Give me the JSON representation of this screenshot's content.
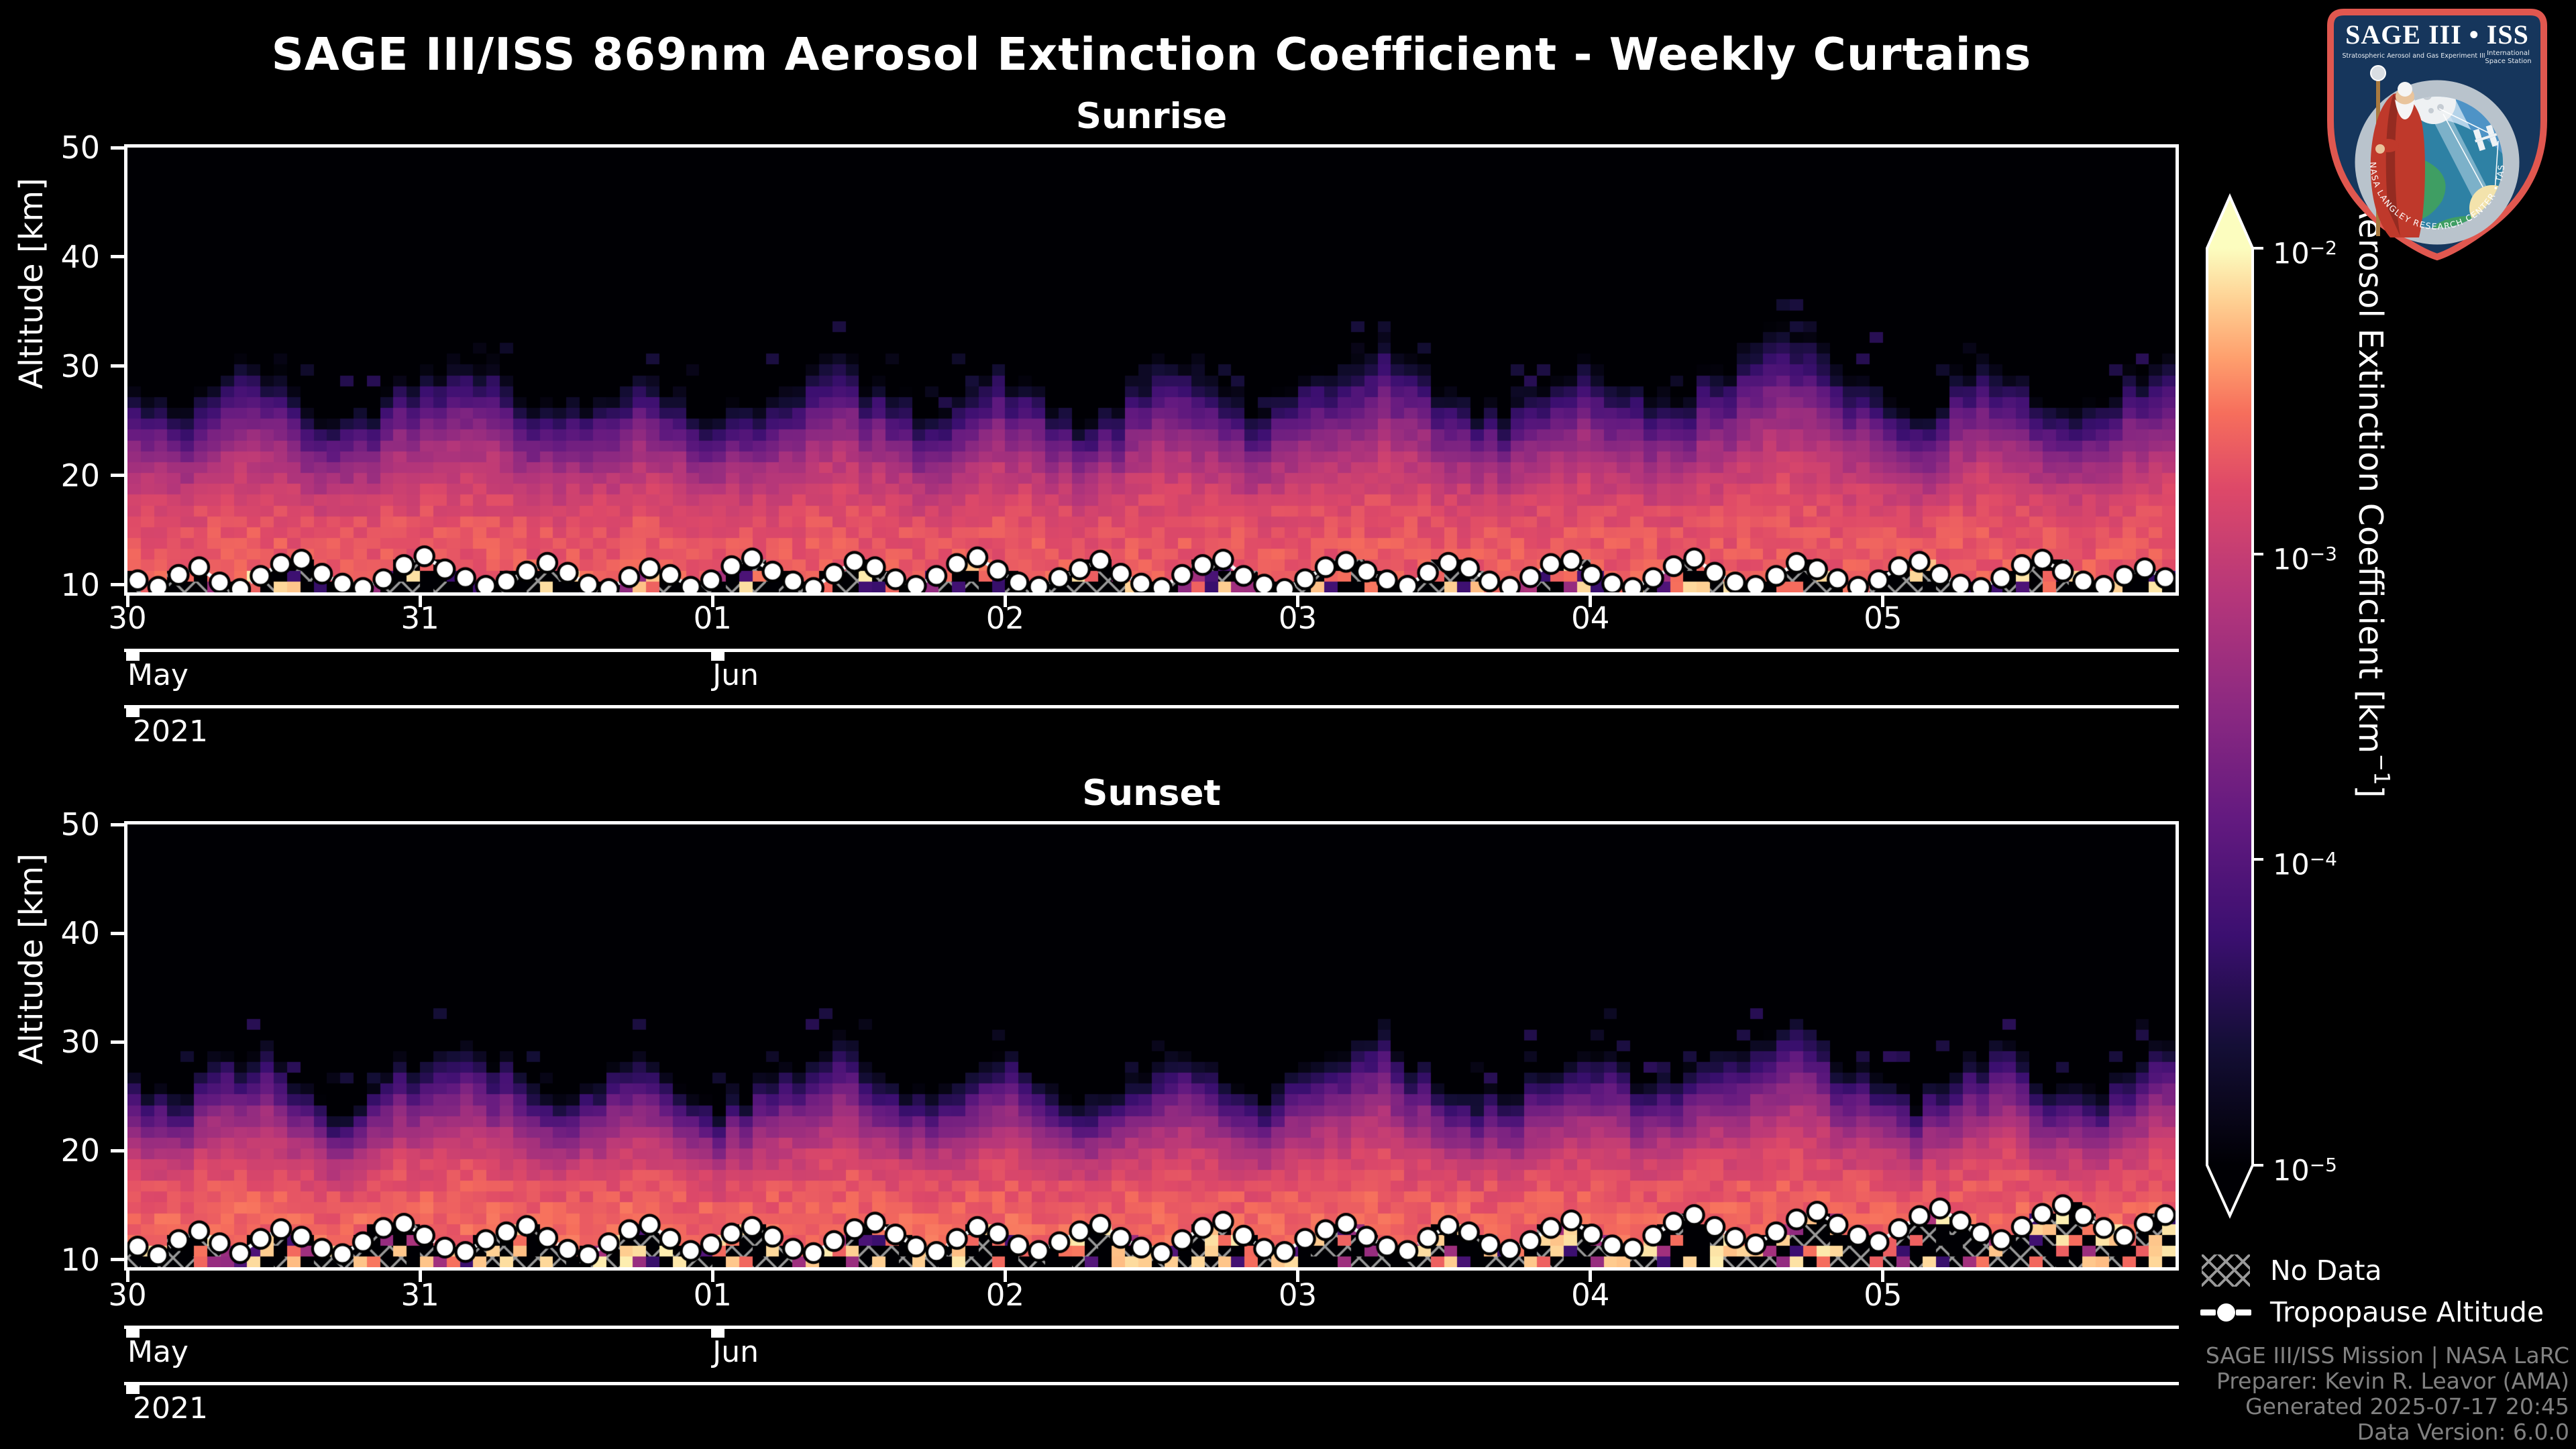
{
  "title": "SAGE III/ISS 869nm Aerosol Extinction Coefficient - Weekly Curtains",
  "colors": {
    "background": "#000000",
    "text": "#ffffff",
    "muted_text": "#818181",
    "hatch": "#999999",
    "spine": "#ffffff",
    "logo_navy": "#16365c",
    "logo_red": "#e0574f",
    "logo_ring": "#b9c3cc",
    "logo_sky": "#4e93c6",
    "logo_ocean": "#2e81a4",
    "logo_land": "#3f9e63",
    "logo_sun": "#f3e3ac"
  },
  "colormap": [
    [
      0,
      "#000004"
    ],
    [
      0.13,
      "#140e36"
    ],
    [
      0.25,
      "#3b0f70"
    ],
    [
      0.38,
      "#641a80"
    ],
    [
      0.5,
      "#8c2981"
    ],
    [
      0.62,
      "#b5367a"
    ],
    [
      0.74,
      "#de4968"
    ],
    [
      0.82,
      "#f66e5c"
    ],
    [
      0.88,
      "#fe9f6d"
    ],
    [
      0.94,
      "#fece91"
    ],
    [
      1,
      "#fcfdbf"
    ]
  ],
  "chart_data": [
    {
      "type": "heatmap",
      "title": "Sunrise",
      "xlabel": "",
      "ylabel": "Altitude [km]",
      "x_day_labels": [
        "30",
        "31",
        "01",
        "02",
        "03",
        "04",
        "05"
      ],
      "x_month_ticks": [
        {
          "label": "May",
          "day_index": 0
        },
        {
          "label": "Jun",
          "day_index": 2
        }
      ],
      "x_year_tick": {
        "label": "2021",
        "day_index": 0
      },
      "y_ticks_km": [
        10,
        20,
        30,
        40,
        50
      ],
      "ylim_km": [
        9.3,
        50
      ],
      "x_range": [
        "2021-05-30",
        "2021-06-06"
      ],
      "color_scale": {
        "type": "log",
        "vmin": 1e-05,
        "vmax": 0.01,
        "units": "km-1"
      },
      "columns_per_day": 22,
      "profile": {
        "bottom_log10": -2.68,
        "drop": 2.35,
        "gamma": 2.6,
        "knee_km": 11
      },
      "band_bright_prob": 0.12,
      "noise_seed": 42,
      "skyline_top_km": [
        28,
        26,
        29,
        31,
        27,
        25,
        28,
        30,
        32,
        29,
        26,
        27,
        30,
        28,
        25,
        27,
        29,
        31,
        28,
        26,
        28,
        30,
        27,
        25,
        28,
        31,
        29,
        26,
        28,
        30,
        33,
        30,
        27,
        26,
        29,
        31,
        28,
        27,
        30,
        32,
        34,
        31,
        28,
        26,
        29,
        31,
        27,
        26,
        29,
        31
      ],
      "tropopause_km": [
        10.4,
        9.8,
        10.9,
        11.6,
        10.2,
        9.6,
        10.8,
        11.9,
        12.3,
        11.0,
        10.1,
        9.7,
        10.5,
        11.8,
        12.6,
        11.4,
        10.6,
        9.9,
        10.3,
        11.2,
        12.0,
        11.1,
        10.0,
        9.6,
        10.7,
        11.5,
        10.9,
        9.8,
        10.4,
        11.7,
        12.4,
        11.2,
        10.3,
        9.7,
        11.0,
        12.1,
        11.6,
        10.5,
        9.9,
        10.8,
        11.9,
        12.5,
        11.3,
        10.2,
        9.8,
        10.6,
        11.4,
        12.2,
        11.0,
        10.1,
        9.7,
        10.9,
        11.8,
        12.3,
        10.8,
        10.0,
        9.6,
        10.5,
        11.6,
        12.1,
        11.2,
        10.4,
        9.9,
        11.1,
        12.0,
        11.5,
        10.3,
        9.8,
        10.7,
        11.9,
        12.2,
        10.9,
        10.1,
        9.7,
        10.6,
        11.7,
        12.4,
        11.1,
        10.2,
        9.9,
        10.8,
        12.0,
        11.4,
        10.5,
        9.8,
        10.4,
        11.6,
        12.1,
        10.9,
        10.0,
        9.7,
        10.6,
        11.8,
        12.3,
        11.2,
        10.3,
        9.9,
        10.8,
        11.5,
        10.6
      ]
    },
    {
      "type": "heatmap",
      "title": "Sunset",
      "xlabel": "",
      "ylabel": "Altitude [km]",
      "x_day_labels": [
        "30",
        "31",
        "01",
        "02",
        "03",
        "04",
        "05"
      ],
      "x_month_ticks": [
        {
          "label": "May",
          "day_index": 0
        },
        {
          "label": "Jun",
          "day_index": 2
        }
      ],
      "x_year_tick": {
        "label": "2021",
        "day_index": 0
      },
      "y_ticks_km": [
        10,
        20,
        30,
        40,
        50
      ],
      "ylim_km": [
        9.3,
        50
      ],
      "x_range": [
        "2021-05-30",
        "2021-06-06"
      ],
      "color_scale": {
        "type": "log",
        "vmin": 1e-05,
        "vmax": 0.01,
        "units": "km-1"
      },
      "columns_per_day": 22,
      "profile": {
        "bottom_log10": -2.6,
        "drop": 2.35,
        "gamma": 2.6,
        "knee_km": 11.5
      },
      "band_bright_prob": 0.2,
      "noise_seed": 77,
      "skyline_top_km": [
        27,
        25,
        28,
        30,
        26,
        24,
        27,
        29,
        31,
        28,
        25,
        26,
        29,
        27,
        24,
        26,
        28,
        30,
        27,
        25,
        27,
        29,
        26,
        24,
        27,
        30,
        28,
        25,
        27,
        29,
        31,
        28,
        26,
        25,
        28,
        30,
        27,
        26,
        29,
        31,
        32,
        29,
        27,
        25,
        28,
        30,
        26,
        25,
        28,
        30
      ],
      "tropopause_km": [
        11.2,
        10.4,
        11.8,
        12.6,
        11.5,
        10.6,
        11.9,
        12.8,
        12.1,
        11.0,
        10.5,
        11.6,
        12.9,
        13.3,
        12.2,
        11.1,
        10.7,
        11.8,
        12.5,
        13.1,
        12.0,
        10.9,
        10.4,
        11.5,
        12.7,
        13.2,
        11.9,
        10.8,
        11.4,
        12.4,
        13.0,
        12.1,
        11.0,
        10.6,
        11.7,
        12.8,
        13.4,
        12.3,
        11.2,
        10.7,
        11.9,
        13.0,
        12.4,
        11.3,
        10.8,
        11.6,
        12.6,
        13.2,
        12.0,
        11.1,
        10.6,
        11.8,
        12.9,
        13.5,
        12.2,
        11.0,
        10.7,
        11.9,
        12.7,
        13.3,
        12.1,
        11.2,
        10.8,
        12.0,
        13.1,
        12.5,
        11.4,
        10.9,
        11.7,
        12.9,
        13.6,
        12.3,
        11.3,
        11.0,
        12.2,
        13.4,
        14.1,
        13.0,
        12.0,
        11.4,
        12.5,
        13.7,
        14.4,
        13.2,
        12.2,
        11.6,
        12.8,
        14.0,
        14.7,
        13.5,
        12.4,
        11.8,
        13.0,
        14.2,
        15.0,
        14.0,
        12.9,
        12.1,
        13.3,
        14.1
      ]
    }
  ],
  "colorbar": {
    "label_prefix": "Aerosol Extinction Coefficient [km",
    "label_sup": "−1",
    "label_suffix": "]",
    "ticks": [
      {
        "base": "10",
        "exp": "−2",
        "log10": -2
      },
      {
        "base": "10",
        "exp": "−3",
        "log10": -3
      },
      {
        "base": "10",
        "exp": "−4",
        "log10": -4
      },
      {
        "base": "10",
        "exp": "−5",
        "log10": -5
      }
    ]
  },
  "legend": {
    "no_data": "No Data",
    "tropopause": "Tropopause Altitude"
  },
  "footer_lines": [
    "SAGE III/ISS Mission | NASA LaRC",
    "Preparer: Kevin R. Leavor (AMA)",
    "Generated 2025-07-17 20:45",
    "Data Version: 6.0.0"
  ],
  "logo": {
    "title": "SAGE III • ISS",
    "subtitle_left": "Stratospheric Aerosol and Gas Experiment III",
    "subtitle_right_1": "International",
    "subtitle_right_2": "Space Station",
    "ring_text": "BALL • NASA LANGLEY RESEARCH CENTER • TAS-I • ESA"
  }
}
